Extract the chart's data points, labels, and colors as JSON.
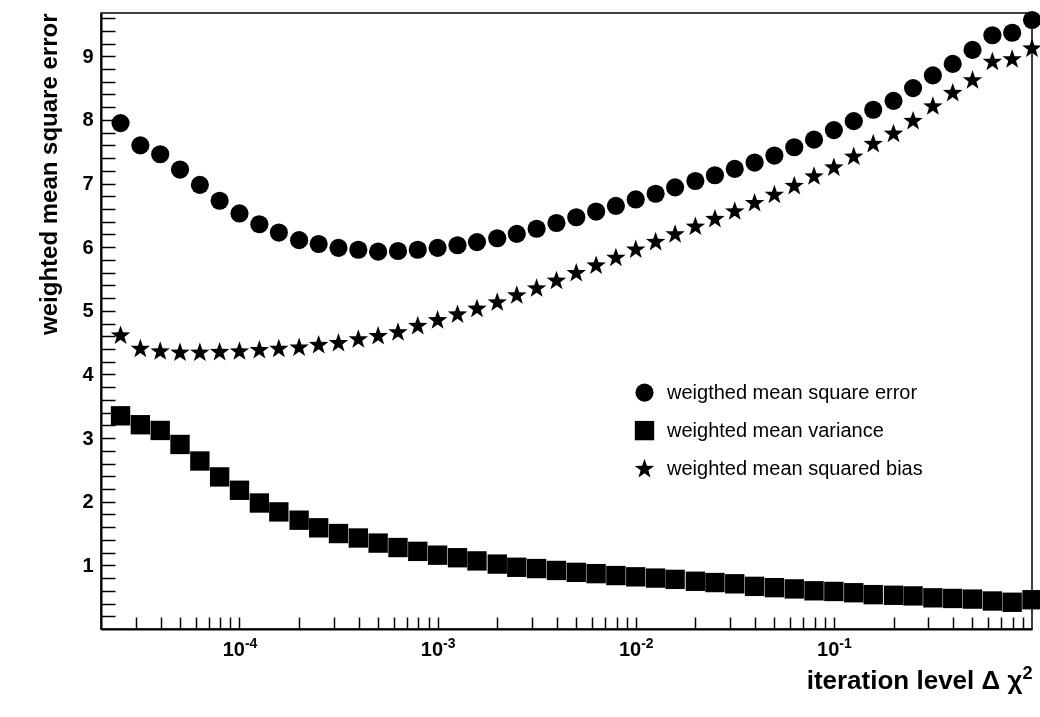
{
  "chart_data": {
    "type": "scatter",
    "xlabel": "iteration level Δ χ$^{2}$",
    "ylabel": "weighted mean square error",
    "log": "x",
    "grid": false,
    "legend": "right",
    "xlim": [
      2e-05,
      1
    ],
    "ylim": [
      0,
      9.68
    ],
    "xticks": [
      {
        "value": 3e-05,
        "label": null
      },
      {
        "value": 4e-05,
        "label": null
      },
      {
        "value": 5e-05,
        "label": null
      },
      {
        "value": 6e-05,
        "label": null
      },
      {
        "value": 7e-05,
        "label": null
      },
      {
        "value": 8e-05,
        "label": null
      },
      {
        "value": 9e-05,
        "label": null
      },
      {
        "value": 0.0001,
        "label": "10$^{-4}$"
      },
      {
        "value": 0.0002,
        "label": null
      },
      {
        "value": 0.0003,
        "label": null
      },
      {
        "value": 0.0004,
        "label": null
      },
      {
        "value": 0.0005,
        "label": null
      },
      {
        "value": 0.0006,
        "label": null
      },
      {
        "value": 0.0007,
        "label": null
      },
      {
        "value": 0.0008,
        "label": null
      },
      {
        "value": 0.0009,
        "label": null
      },
      {
        "value": 0.001,
        "label": "10$^{-3}$"
      },
      {
        "value": 0.002,
        "label": null
      },
      {
        "value": 0.003,
        "label": null
      },
      {
        "value": 0.004,
        "label": null
      },
      {
        "value": 0.005,
        "label": null
      },
      {
        "value": 0.006,
        "label": null
      },
      {
        "value": 0.007,
        "label": null
      },
      {
        "value": 0.008,
        "label": null
      },
      {
        "value": 0.009,
        "label": null
      },
      {
        "value": 0.01,
        "label": "10$^{-2}$"
      },
      {
        "value": 0.02,
        "label": null
      },
      {
        "value": 0.03,
        "label": null
      },
      {
        "value": 0.04,
        "label": null
      },
      {
        "value": 0.05,
        "label": null
      },
      {
        "value": 0.06,
        "label": null
      },
      {
        "value": 0.07,
        "label": null
      },
      {
        "value": 0.08,
        "label": null
      },
      {
        "value": 0.09,
        "label": null
      },
      {
        "value": 0.1,
        "label": "10$^{-1}$"
      },
      {
        "value": 0.2,
        "label": null
      },
      {
        "value": 0.3,
        "label": null
      },
      {
        "value": 0.4,
        "label": null
      },
      {
        "value": 0.5,
        "label": null
      },
      {
        "value": 0.6,
        "label": null
      },
      {
        "value": 0.7,
        "label": null
      },
      {
        "value": 0.8,
        "label": null
      },
      {
        "value": 0.9,
        "label": null
      }
    ],
    "yticks": [
      {
        "value": 0.2,
        "label": null
      },
      {
        "value": 0.4,
        "label": null
      },
      {
        "value": 0.6,
        "label": null
      },
      {
        "value": 0.8,
        "label": null
      },
      1,
      {
        "value": 1.2,
        "label": null
      },
      {
        "value": 1.4,
        "label": null
      },
      {
        "value": 1.6,
        "label": null
      },
      {
        "value": 1.8,
        "label": null
      },
      2,
      {
        "value": 2.2,
        "label": null
      },
      {
        "value": 2.4,
        "label": null
      },
      {
        "value": 2.6,
        "label": null
      },
      {
        "value": 2.8,
        "label": null
      },
      3,
      {
        "value": 3.2,
        "label": null
      },
      {
        "value": 3.4,
        "label": null
      },
      {
        "value": 3.6,
        "label": null
      },
      {
        "value": 3.8,
        "label": null
      },
      4,
      {
        "value": 4.2,
        "label": null
      },
      {
        "value": 4.4,
        "label": null
      },
      {
        "value": 4.6,
        "label": null
      },
      {
        "value": 4.8,
        "label": null
      },
      5,
      {
        "value": 5.2,
        "label": null
      },
      {
        "value": 5.4,
        "label": null
      },
      {
        "value": 5.6,
        "label": null
      },
      {
        "value": 5.8,
        "label": null
      },
      6,
      {
        "value": 6.2,
        "label": null
      },
      {
        "value": 6.4,
        "label": null
      },
      {
        "value": 6.6,
        "label": null
      },
      {
        "value": 6.8,
        "label": null
      },
      7,
      {
        "value": 7.2,
        "label": null
      },
      {
        "value": 7.4,
        "label": null
      },
      {
        "value": 7.6,
        "label": null
      },
      {
        "value": 7.8,
        "label": null
      },
      8,
      {
        "value": 8.2,
        "label": null
      },
      {
        "value": 8.4,
        "label": null
      },
      {
        "value": 8.6,
        "label": null
      },
      {
        "value": 8.8,
        "label": null
      },
      9,
      {
        "value": 9.2,
        "label": null
      },
      {
        "value": 9.4,
        "label": null
      },
      {
        "value": 9.6,
        "label": null
      }
    ],
    "x": [
      2.51e-05,
      3.16e-05,
      3.98e-05,
      5.01e-05,
      6.31e-05,
      7.94e-05,
      0.0001,
      0.000126,
      0.000158,
      0.0002,
      0.000251,
      0.000316,
      0.000398,
      0.000501,
      0.000631,
      0.000794,
      0.001,
      0.00126,
      0.00158,
      0.002,
      0.00251,
      0.00316,
      0.00398,
      0.00501,
      0.00631,
      0.00794,
      0.01,
      0.0126,
      0.0158,
      0.02,
      0.0251,
      0.0316,
      0.0398,
      0.0501,
      0.0631,
      0.0794,
      0.1,
      0.126,
      0.158,
      0.2,
      0.251,
      0.316,
      0.398,
      0.501,
      0.631,
      0.794,
      1
    ],
    "series": [
      {
        "name": "weigthed mean square error",
        "color": "#000000",
        "marker": "circle",
        "values": [
          7.95,
          7.6,
          7.46,
          7.22,
          6.98,
          6.73,
          6.53,
          6.36,
          6.23,
          6.11,
          6.05,
          5.99,
          5.96,
          5.93,
          5.94,
          5.96,
          5.99,
          6.03,
          6.08,
          6.14,
          6.21,
          6.29,
          6.38,
          6.47,
          6.56,
          6.65,
          6.75,
          6.84,
          6.94,
          7.04,
          7.13,
          7.23,
          7.33,
          7.44,
          7.57,
          7.69,
          7.84,
          7.98,
          8.16,
          8.3,
          8.5,
          8.7,
          8.88,
          9.1,
          9.33,
          9.37,
          9.57
        ]
      },
      {
        "name": "weighted mean variance",
        "color": "#000000",
        "marker": "square",
        "values": [
          3.35,
          3.21,
          3.12,
          2.9,
          2.64,
          2.39,
          2.18,
          1.98,
          1.84,
          1.71,
          1.59,
          1.5,
          1.43,
          1.35,
          1.28,
          1.22,
          1.16,
          1.12,
          1.07,
          1.02,
          0.97,
          0.95,
          0.92,
          0.89,
          0.87,
          0.84,
          0.82,
          0.8,
          0.78,
          0.75,
          0.73,
          0.71,
          0.67,
          0.65,
          0.63,
          0.6,
          0.59,
          0.57,
          0.54,
          0.53,
          0.52,
          0.49,
          0.48,
          0.47,
          0.44,
          0.42,
          0.46
        ]
      },
      {
        "name": "weighted mean squared bias",
        "color": "#000000",
        "marker": "star",
        "values": [
          4.61,
          4.4,
          4.36,
          4.34,
          4.34,
          4.35,
          4.36,
          4.38,
          4.4,
          4.42,
          4.46,
          4.49,
          4.55,
          4.6,
          4.66,
          4.76,
          4.85,
          4.94,
          5.03,
          5.13,
          5.24,
          5.35,
          5.47,
          5.59,
          5.71,
          5.83,
          5.96,
          6.08,
          6.2,
          6.32,
          6.44,
          6.56,
          6.69,
          6.82,
          6.96,
          7.11,
          7.25,
          7.42,
          7.62,
          7.78,
          7.98,
          8.21,
          8.42,
          8.62,
          8.91,
          8.95,
          9.12
        ]
      }
    ]
  }
}
